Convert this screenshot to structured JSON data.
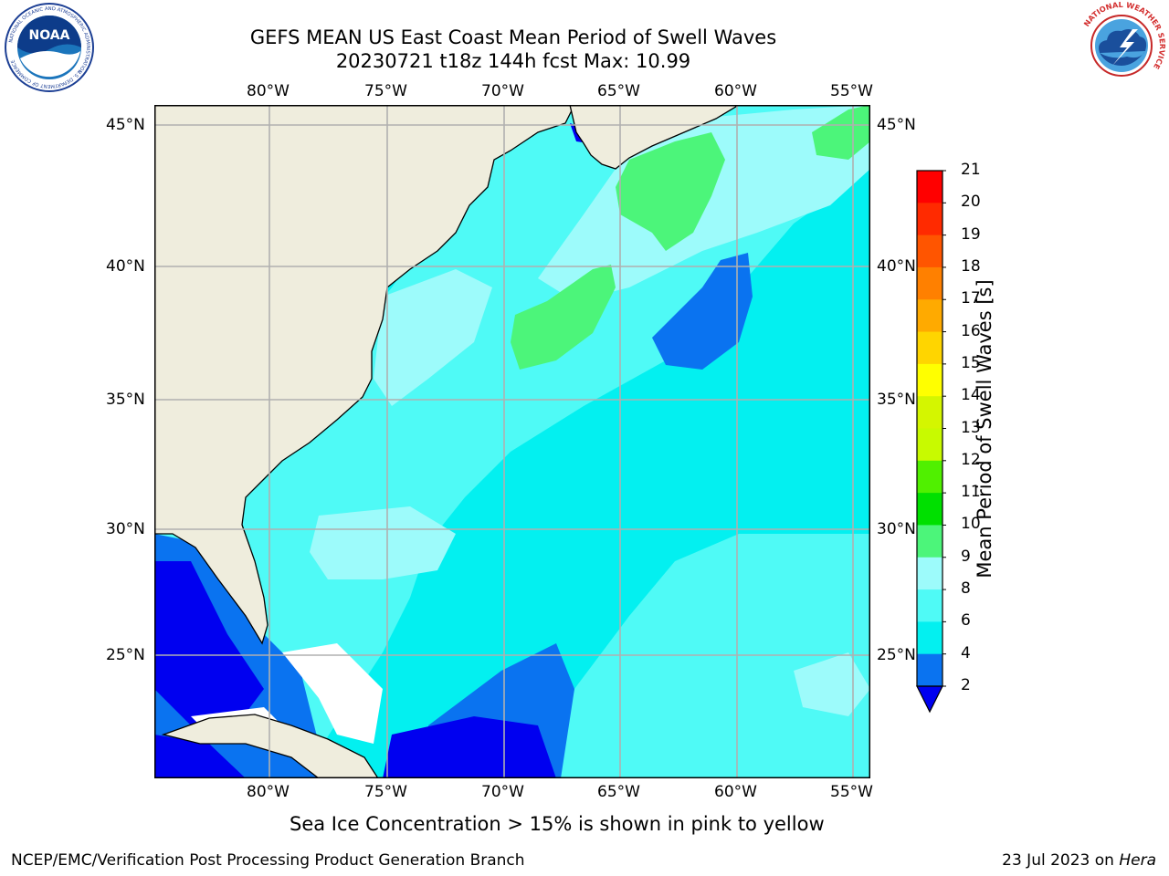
{
  "title": {
    "line1": "GEFS MEAN US East Coast Mean Period of Swell Waves",
    "line2": "20230721 t18z 144h fcst   Max: 10.99"
  },
  "logos": {
    "left_icon": "noaa-logo",
    "right_icon": "nws-logo",
    "noaa_text": "NOAA",
    "noaa_ring_text": "NATIONAL OCEANIC AND ATMOSPHERIC ADMINISTRATION",
    "noaa_ring_bottom": "U.S. DEPARTMENT OF COMMERCE",
    "nws_ring_text": "NATIONAL WEATHER SERVICE"
  },
  "map": {
    "lon_labels": [
      "80°W",
      "75°W",
      "70°W",
      "65°W",
      "60°W",
      "55°W"
    ],
    "lat_labels": [
      "45°N",
      "40°N",
      "35°N",
      "30°N",
      "25°N"
    ],
    "colors": {
      "land": "#efeddd",
      "c2_4": "#0a73f0",
      "c4_6": "#03f0f0",
      "c6_8": "#4ffaf6",
      "c8_9": "#9dfbfb",
      "c9_10": "#4cf57a",
      "below": "#0000f0",
      "nodata": "#ffffff"
    }
  },
  "colorbar": {
    "label": "Mean Period of Swell Waves [s]",
    "ticks": [
      "21",
      "20",
      "19",
      "18",
      "17",
      "16",
      "15",
      "14",
      "13",
      "12",
      "11",
      "10",
      "9",
      "8",
      "6",
      "4",
      "2"
    ],
    "colors": [
      "#ff0000",
      "#ff2a00",
      "#ff5500",
      "#ff8000",
      "#ffaa00",
      "#ffd500",
      "#ffff00",
      "#d4f600",
      "#c8fa00",
      "#50f000",
      "#00e000",
      "#4cf57a",
      "#9dfbfb",
      "#4ffaf6",
      "#03f0f0",
      "#0a73f0"
    ],
    "extend_color": "#0000f0"
  },
  "footer": {
    "note": "Sea Ice Concentration > 15% is shown in pink to yellow",
    "left": "NCEP/EMC/Verification Post Processing Product Generation Branch",
    "right_prefix": "23 Jul 2023 on ",
    "right_machine": "Hera"
  }
}
